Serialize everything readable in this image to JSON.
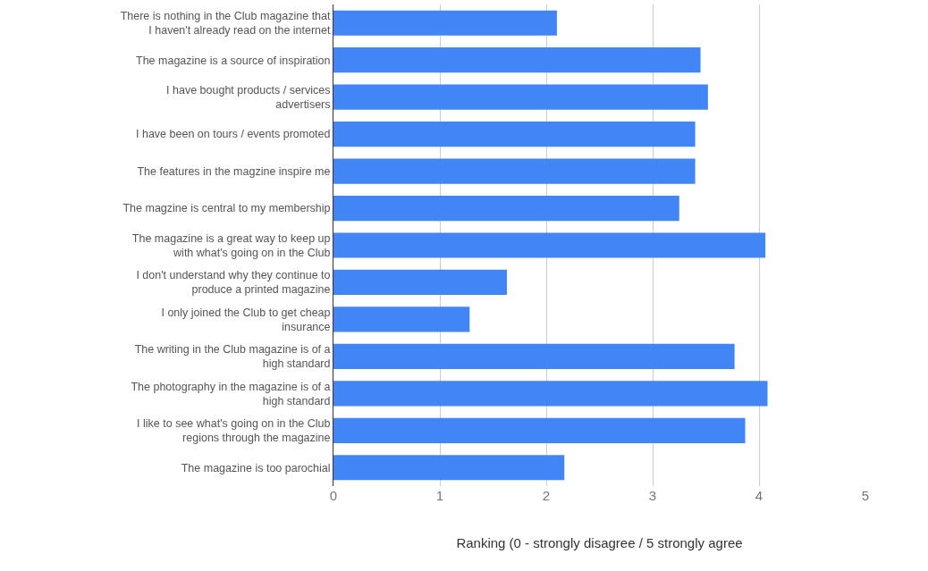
{
  "chart_data": {
    "type": "bar",
    "orientation": "horizontal",
    "xlabel": "Ranking (0 - strongly disagree / 5 strongly agree",
    "categories": [
      "There is nothing in the Club magazine that I haven't already read on the internet",
      "The magazine is a source of inspiration",
      "I have bought products / services advertisers",
      "I have been on tours / events promoted",
      "The features in the magzine inspire me",
      "The magzine is central to my membership",
      "The magazine is a great way to keep up with what's going on in the Club",
      "I don't understand why they continue to produce a printed magazine",
      "I only joined the Club to get cheap insurance",
      "The writing in the Club magazine is of a high standard",
      "The photography in the magazine is of a high standard",
      "I like to see what's going on in the Club regions through the magazine",
      "The magazine is too parochial"
    ],
    "values": [
      2.1,
      3.45,
      3.52,
      3.4,
      3.4,
      3.25,
      4.06,
      1.63,
      1.28,
      3.77,
      4.08,
      3.87,
      2.17
    ],
    "color": "#4285f4",
    "xlim": [
      0,
      5
    ],
    "xticks": [
      0,
      1,
      2,
      3,
      4,
      5
    ],
    "grid": "x"
  }
}
